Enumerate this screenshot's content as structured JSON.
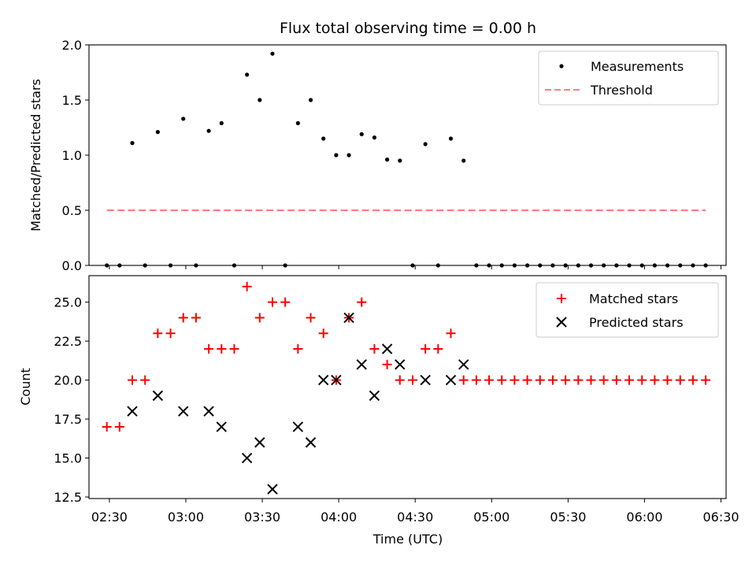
{
  "figure": {
    "title": "Flux total observing time = 0.00 h",
    "xlabel": "Time (UTC)"
  },
  "chart_data": [
    {
      "type": "scatter",
      "panel": "top",
      "title": "Flux total observing time = 0.00 h",
      "ylabel": "Matched/Predicted stars",
      "xlim": [
        "02:22",
        "06:32"
      ],
      "ylim": [
        0,
        2.0
      ],
      "yticks": [
        0.0,
        0.5,
        1.0,
        1.5,
        2.0
      ],
      "ytick_labels": [
        "0.0",
        "0.5",
        "1.0",
        "1.5",
        "2.0"
      ],
      "legend": "top-right",
      "colors": {
        "measurements": "#000000",
        "threshold": "#ff7f7f"
      },
      "series": [
        {
          "name": "Measurements",
          "marker": "dot",
          "x": [
            "02:29",
            "02:34",
            "02:39",
            "02:44",
            "02:49",
            "02:54",
            "02:59",
            "03:04",
            "03:09",
            "03:14",
            "03:19",
            "03:24",
            "03:29",
            "03:34",
            "03:39",
            "03:44",
            "03:49",
            "03:54",
            "03:59",
            "04:04",
            "04:09",
            "04:14",
            "04:19",
            "04:24",
            "04:29",
            "04:34",
            "04:39",
            "04:44",
            "04:49",
            "04:54",
            "04:59",
            "05:04",
            "05:09",
            "05:14",
            "05:19",
            "05:24",
            "05:29",
            "05:34",
            "05:39",
            "05:44",
            "05:49",
            "05:54",
            "05:59",
            "06:04",
            "06:09",
            "06:14",
            "06:19",
            "06:24"
          ],
          "y": [
            0,
            0,
            1.11,
            0,
            1.21,
            0,
            1.33,
            0,
            1.22,
            1.29,
            0,
            1.73,
            1.5,
            1.92,
            0,
            1.29,
            1.5,
            1.15,
            1.0,
            1.0,
            1.19,
            1.16,
            0.96,
            0.95,
            0,
            1.1,
            0,
            1.15,
            0.95,
            0,
            0,
            0,
            0,
            0,
            0,
            0,
            0,
            0,
            0,
            0,
            0,
            0,
            0,
            0,
            0,
            0,
            0,
            0
          ]
        },
        {
          "name": "Threshold",
          "style": "dashed",
          "x": [
            "02:29",
            "06:24"
          ],
          "y": [
            0.5,
            0.5
          ]
        }
      ]
    },
    {
      "type": "scatter",
      "panel": "bottom",
      "ylabel": "Count",
      "xlabel": "Time (UTC)",
      "xlim": [
        "02:22",
        "06:32"
      ],
      "ylim": [
        12.4,
        26.7
      ],
      "yticks": [
        12.5,
        15.0,
        17.5,
        20.0,
        22.5,
        25.0
      ],
      "ytick_labels": [
        "12.5",
        "15.0",
        "17.5",
        "20.0",
        "22.5",
        "25.0"
      ],
      "xticks": [
        "02:30",
        "03:00",
        "03:30",
        "04:00",
        "04:30",
        "05:00",
        "05:30",
        "06:00",
        "06:30"
      ],
      "legend": "top-right",
      "colors": {
        "matched": "#ff0000",
        "predicted": "#000000"
      },
      "series": [
        {
          "name": "Matched stars",
          "marker": "plus",
          "x": [
            "02:29",
            "02:34",
            "02:39",
            "02:44",
            "02:49",
            "02:54",
            "02:59",
            "03:04",
            "03:09",
            "03:14",
            "03:19",
            "03:24",
            "03:29",
            "03:34",
            "03:39",
            "03:44",
            "03:49",
            "03:54",
            "03:59",
            "04:04",
            "04:09",
            "04:14",
            "04:19",
            "04:24",
            "04:29",
            "04:34",
            "04:39",
            "04:44",
            "04:49",
            "04:54",
            "04:59",
            "05:04",
            "05:09",
            "05:14",
            "05:19",
            "05:24",
            "05:29",
            "05:34",
            "05:39",
            "05:44",
            "05:49",
            "05:54",
            "05:59",
            "06:04",
            "06:09",
            "06:14",
            "06:19",
            "06:24"
          ],
          "y": [
            17,
            17,
            20,
            20,
            23,
            23,
            24,
            24,
            22,
            22,
            22,
            26,
            24,
            25,
            25,
            22,
            24,
            23,
            20,
            24,
            25,
            22,
            21,
            20,
            20,
            22,
            22,
            23,
            20,
            20,
            20,
            20,
            20,
            20,
            20,
            20,
            20,
            20,
            20,
            20,
            20,
            20,
            20,
            20,
            20,
            20,
            20,
            20
          ]
        },
        {
          "name": "Predicted stars",
          "marker": "x",
          "x": [
            "02:39",
            "02:49",
            "02:59",
            "03:09",
            "03:14",
            "03:24",
            "03:29",
            "03:34",
            "03:44",
            "03:49",
            "03:54",
            "03:59",
            "04:04",
            "04:09",
            "04:14",
            "04:19",
            "04:24",
            "04:34",
            "04:44",
            "04:49"
          ],
          "y": [
            18,
            19,
            18,
            18,
            17,
            15,
            16,
            13,
            17,
            16,
            20,
            20,
            24,
            21,
            19,
            22,
            21,
            20,
            20,
            21
          ]
        }
      ]
    }
  ]
}
